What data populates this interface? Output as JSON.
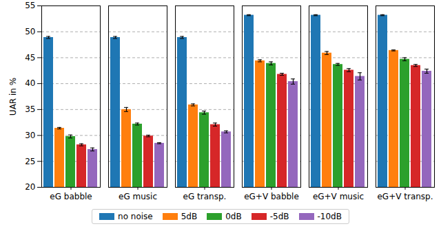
{
  "chart_data": {
    "type": "bar",
    "y_label": "UAR in %",
    "categories": [
      "eG babble",
      "eG music",
      "eG transp.",
      "eG+V babble",
      "eG+V music",
      "eG+V transp."
    ],
    "series": [
      {
        "name": "no noise",
        "color": "#1f77b4",
        "values": [
          48.9,
          48.9,
          48.9,
          53.2,
          53.2,
          53.2
        ],
        "errors": [
          0.2,
          0.2,
          0.2,
          0.1,
          0.1,
          0.1
        ]
      },
      {
        "name": "5dB",
        "color": "#ff7f0e",
        "values": [
          31.4,
          35.0,
          35.9,
          44.4,
          45.9,
          46.4
        ],
        "errors": [
          0.15,
          0.4,
          0.2,
          0.2,
          0.3,
          0.1
        ]
      },
      {
        "name": "0dB",
        "color": "#2ca02c",
        "values": [
          29.8,
          32.2,
          34.4,
          43.9,
          43.7,
          44.7
        ],
        "errors": [
          0.3,
          0.2,
          0.3,
          0.3,
          0.2,
          0.3
        ]
      },
      {
        "name": "-5dB",
        "color": "#d62728",
        "values": [
          28.2,
          29.9,
          32.1,
          41.8,
          42.6,
          43.5
        ],
        "errors": [
          0.2,
          0.15,
          0.3,
          0.2,
          0.3,
          0.2
        ]
      },
      {
        "name": "-10dB",
        "color": "#9467bd",
        "values": [
          27.3,
          28.5,
          30.7,
          40.4,
          41.4,
          42.4
        ],
        "errors": [
          0.3,
          0.1,
          0.2,
          0.5,
          0.7,
          0.4
        ]
      }
    ],
    "ylim": [
      20,
      55
    ],
    "yticks": [
      20,
      25,
      30,
      35,
      40,
      45,
      50,
      55
    ],
    "grid": true,
    "legend": "bottom"
  }
}
